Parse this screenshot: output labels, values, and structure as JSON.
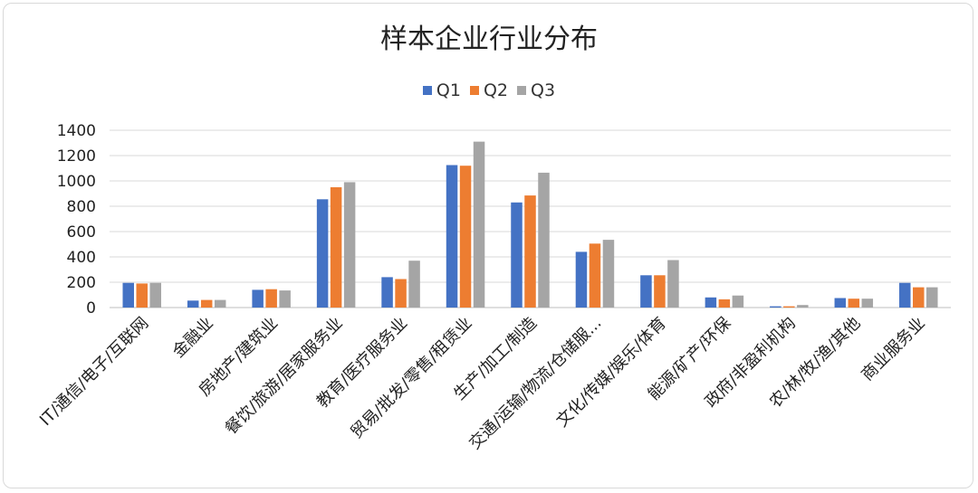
{
  "chart_data": {
    "type": "bar",
    "title": "样本企业行业分布",
    "xlabel": "",
    "ylabel": "",
    "ylim": [
      0,
      1400
    ],
    "yticks": [
      0,
      200,
      400,
      600,
      800,
      1000,
      1200,
      1400
    ],
    "grid": true,
    "legend_position": "top",
    "categories": [
      "IT/通信/电子/互联网",
      "金融业",
      "房地产/建筑业",
      "餐饮/旅游/居家服务业",
      "教育/医疗服务业",
      "贸易/批发/零售/租赁业",
      "生产/加工/制造",
      "交通/运输/物流/仓储服...",
      "文化/传媒/娱乐/体育",
      "能源/矿产/环保",
      "政府/非盈利机构",
      "农/林/牧/渔/其他",
      "商业服务业"
    ],
    "series": [
      {
        "name": "Q1",
        "color": "#4472C4",
        "values": [
          195,
          55,
          140,
          855,
          240,
          1125,
          830,
          440,
          255,
          80,
          10,
          75,
          195
        ]
      },
      {
        "name": "Q2",
        "color": "#ED7D31",
        "values": [
          190,
          60,
          145,
          950,
          225,
          1120,
          885,
          505,
          255,
          65,
          10,
          70,
          160
        ]
      },
      {
        "name": "Q3",
        "color": "#A5A5A5",
        "values": [
          195,
          60,
          135,
          990,
          370,
          1310,
          1065,
          535,
          375,
          95,
          20,
          70,
          160
        ]
      }
    ]
  }
}
